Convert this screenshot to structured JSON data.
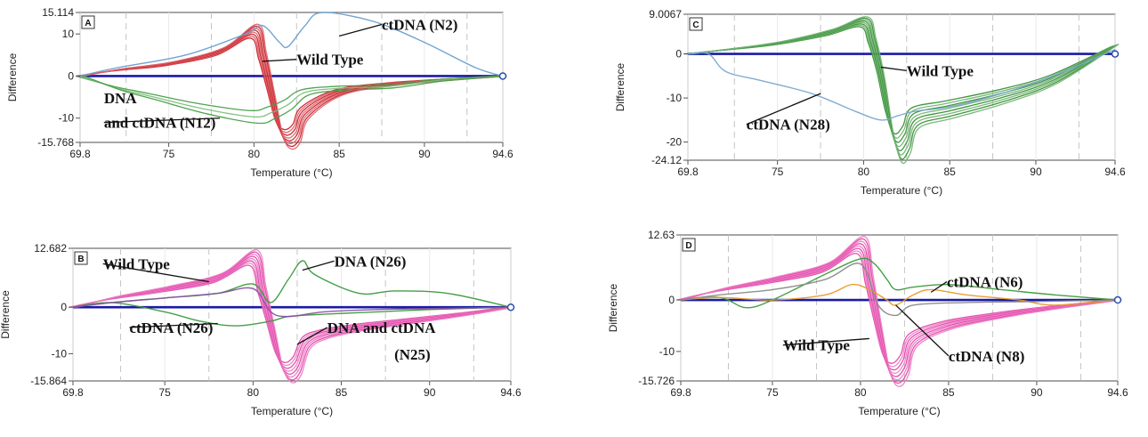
{
  "chart_data": [
    {
      "id": "A",
      "type": "line",
      "panel_label": "A",
      "xlabel": "Temperature (°C)",
      "ylabel": "Difference",
      "xlim": [
        69.8,
        94.6
      ],
      "ylim": [
        -15.768,
        15.114
      ],
      "x_ticks": [
        "69.8",
        "75",
        "80",
        "85",
        "90",
        "94.6"
      ],
      "x_tick_values": [
        69.8,
        75,
        80,
        85,
        90,
        94.6
      ],
      "y_ticks": [
        "15.114",
        "10",
        "0",
        "-10",
        "-15.768"
      ],
      "y_tick_values": [
        15.114,
        10,
        0,
        -10,
        -15.768
      ],
      "gridlines_x": [
        72.5,
        77.5,
        82.5,
        87.5,
        92.5
      ],
      "baseline_color": "#1a1aa6",
      "series": [
        {
          "color": "#c8141e",
          "lines": 8,
          "x": [
            69.8,
            72,
            75,
            78,
            80,
            80.5,
            81,
            81.5,
            82,
            82.5,
            83,
            85,
            88,
            91,
            94.6
          ],
          "y": [
            0,
            1.5,
            3,
            6,
            11,
            5,
            -4,
            -13,
            -15.5,
            -14,
            -9,
            -4,
            -2,
            -1,
            0
          ]
        },
        {
          "color": "#3c9a3c",
          "lines": 3,
          "x": [
            69.8,
            72,
            74,
            77,
            80,
            81,
            82,
            83,
            85,
            88,
            91,
            94.6
          ],
          "y": [
            0,
            -3,
            -5,
            -8,
            -10,
            -9,
            -7,
            -4,
            -3,
            -2.5,
            -1,
            0
          ]
        },
        {
          "color": "#6a9fcf",
          "lines": 1,
          "x": [
            69.8,
            72,
            76,
            79.5,
            80.5,
            81.5,
            82,
            83,
            84,
            87,
            90,
            93,
            94.6
          ],
          "y": [
            0,
            2,
            5,
            10,
            12,
            8,
            7,
            12,
            15.1,
            13,
            8,
            2,
            0
          ]
        }
      ],
      "annotations": [
        {
          "text": "ctDNA (N2)",
          "x": 87.5,
          "y": 11,
          "ax": 85,
          "ay": 9.5
        },
        {
          "text": "Wild Type",
          "x": 82.5,
          "y": 2.7,
          "ax": 80.5,
          "ay": 3.5
        },
        {
          "text": "DNA",
          "x": 71.2,
          "y": -6.5
        },
        {
          "text": "and ctDNA (N12)",
          "x": 71.2,
          "y": -12.3,
          "ax": 78,
          "ay": -10
        }
      ]
    },
    {
      "id": "C",
      "type": "line",
      "panel_label": "C",
      "xlabel": "Temperature (°C)",
      "ylabel": "Difference",
      "xlim": [
        69.8,
        94.6
      ],
      "ylim": [
        -24.12,
        9.0067
      ],
      "x_ticks": [
        "69.8",
        "75",
        "80",
        "85",
        "90",
        "94.6"
      ],
      "x_tick_values": [
        69.8,
        75,
        80,
        85,
        90,
        94.6
      ],
      "y_ticks": [
        "9.0067",
        "0",
        "-10",
        "-20",
        "-24.12"
      ],
      "y_tick_values": [
        9.0067,
        0,
        -10,
        -20,
        -24.12
      ],
      "gridlines_x": [
        72.5,
        77.5,
        82.5,
        87.5,
        92.5
      ],
      "baseline_color": "#1a1aa6",
      "series": [
        {
          "color": "#2a8a2a",
          "lines": 8,
          "x": [
            69.8,
            72,
            75,
            78,
            80,
            80.5,
            81,
            81.5,
            82,
            82.5,
            83,
            85,
            88,
            91,
            94.6
          ],
          "y": [
            0,
            1,
            2.5,
            5,
            7.5,
            3,
            -5,
            -16,
            -22,
            -20,
            -15,
            -13,
            -10,
            -6,
            2
          ]
        },
        {
          "color": "#7aa7d0",
          "lines": 1,
          "x": [
            69.8,
            71,
            72,
            74,
            77,
            79.5,
            81,
            82,
            83,
            85,
            88,
            91,
            94.6
          ],
          "y": [
            0,
            0,
            -4,
            -6,
            -9,
            -13,
            -15,
            -14,
            -13,
            -12,
            -9,
            -5,
            1
          ]
        }
      ],
      "annotations": [
        {
          "text": "Wild Type",
          "x": 82.5,
          "y": -5,
          "ax": 81,
          "ay": -3
        },
        {
          "text": "ctDNA (N28)",
          "x": 73.2,
          "y": -17.2,
          "ax": 77.5,
          "ay": -9
        }
      ]
    },
    {
      "id": "B",
      "type": "line",
      "panel_label": "B",
      "xlabel": "Temperature (°C)",
      "ylabel": "Difference",
      "xlim": [
        69.8,
        94.6
      ],
      "ylim": [
        -15.864,
        12.682
      ],
      "x_ticks": [
        "69.8",
        "75",
        "80",
        "85",
        "90",
        "94.6"
      ],
      "x_tick_values": [
        69.8,
        75,
        80,
        85,
        90,
        94.6
      ],
      "y_ticks": [
        "12.682",
        "0",
        "-10",
        "-15.864"
      ],
      "y_tick_values": [
        12.682,
        0,
        -10,
        -15.864
      ],
      "gridlines_x": [
        72.5,
        77.5,
        82.5,
        87.5,
        92.5
      ],
      "baseline_color": "#1a1aa6",
      "series": [
        {
          "color": "#e23ca5",
          "lines": 8,
          "x": [
            69.8,
            72,
            75,
            78,
            80,
            80.5,
            81,
            81.5,
            82,
            82.5,
            83,
            84,
            86,
            89,
            92,
            94.6
          ],
          "y": [
            0,
            2,
            4,
            6.5,
            11,
            4,
            -4,
            -12,
            -14.5,
            -13,
            -8,
            -6,
            -4.5,
            -3,
            -1.5,
            0
          ]
        },
        {
          "color": "#3c9a3c",
          "lines": 1,
          "x": [
            69.8,
            72,
            75,
            78,
            80,
            81,
            82,
            82.8,
            83.5,
            86,
            88,
            91,
            94.6
          ],
          "y": [
            0,
            1,
            2,
            3,
            5,
            1,
            6,
            10,
            7,
            3,
            3.5,
            3,
            0
          ]
        },
        {
          "color": "#3c9a3c",
          "lines": 1,
          "x": [
            69.8,
            72,
            75,
            77,
            79,
            81,
            82,
            84,
            87,
            90,
            94.6
          ],
          "y": [
            0,
            1,
            -1,
            -3,
            -4,
            -3,
            -2,
            -1.5,
            -1,
            -0.5,
            0
          ]
        },
        {
          "color": "#8a50a6",
          "lines": 1,
          "x": [
            69.8,
            72,
            75,
            78,
            80,
            81,
            82,
            84,
            87,
            90,
            94.6
          ],
          "y": [
            0,
            1,
            2,
            3,
            4,
            -1,
            -2,
            -1,
            -0.5,
            -0.3,
            0
          ]
        }
      ],
      "annotations": [
        {
          "text": "Wild Type",
          "x": 71.5,
          "y": 8.2,
          "ax": 77.5,
          "ay": 5.5
        },
        {
          "text": "DNA (N26)",
          "x": 84.6,
          "y": 8.8,
          "ax": 82.8,
          "ay": 8
        },
        {
          "text": "ctDNA (N26)",
          "x": 73,
          "y": -5.5,
          "ax": 78,
          "ay": -3.5
        },
        {
          "text": "DNA and ctDNA",
          "x": 84.2,
          "y": -5.5,
          "ax": 82.5,
          "ay": -8
        },
        {
          "text": "(N25)",
          "x": 88,
          "y": -11.3
        }
      ]
    },
    {
      "id": "D",
      "type": "line",
      "panel_label": "D",
      "xlabel": "Temperature (°C)",
      "ylabel": "Difference",
      "xlim": [
        69.8,
        94.6
      ],
      "ylim": [
        -15.726,
        12.63
      ],
      "x_ticks": [
        "69.8",
        "75",
        "80",
        "85",
        "90",
        "94.6"
      ],
      "x_tick_values": [
        69.8,
        75,
        80,
        85,
        90,
        94.6
      ],
      "y_ticks": [
        "12.63",
        "0",
        "-10",
        "-15.726"
      ],
      "y_tick_values": [
        12.63,
        0,
        -10,
        -15.726
      ],
      "gridlines_x": [
        72.5,
        77.5,
        82.5,
        87.5,
        92.5
      ],
      "baseline_color": "#1a1aa6",
      "series": [
        {
          "color": "#e23ca5",
          "lines": 8,
          "x": [
            69.8,
            72,
            75,
            78,
            80,
            80.5,
            81,
            81.5,
            82,
            82.5,
            83,
            85,
            88,
            91,
            94.6
          ],
          "y": [
            0,
            2,
            4,
            6.5,
            11,
            4,
            -5,
            -13,
            -15,
            -13,
            -8,
            -5,
            -3,
            -1.5,
            0
          ]
        },
        {
          "color": "#3c9a3c",
          "lines": 1,
          "x": [
            69.8,
            72,
            73.5,
            75,
            78,
            80,
            80.8,
            81.5,
            82,
            83,
            85,
            88,
            91,
            94.6
          ],
          "y": [
            0,
            0.5,
            -1.5,
            0,
            5,
            8,
            7,
            4,
            2,
            2.5,
            3,
            2,
            1,
            0
          ]
        },
        {
          "color": "#e89a2a",
          "lines": 1,
          "x": [
            69.8,
            72,
            75,
            78,
            79.5,
            80.5,
            81.5,
            82,
            83,
            84,
            86,
            89,
            91,
            94.6
          ],
          "y": [
            0,
            0.5,
            0,
            1,
            3,
            2,
            0,
            -1,
            1,
            2,
            1,
            0,
            -1,
            0
          ]
        },
        {
          "color": "#8a8a8a",
          "lines": 1,
          "x": [
            69.8,
            72,
            75,
            78,
            80,
            81,
            82,
            83,
            86,
            90,
            94.6
          ],
          "y": [
            0,
            1,
            2,
            4,
            7,
            -1,
            -3,
            -1,
            -0.5,
            -0.3,
            0
          ]
        }
      ],
      "annotations": [
        {
          "text": "ctDNA (N6)",
          "x": 84.9,
          "y": 2.5,
          "ax": 84,
          "ay": 1.5
        },
        {
          "text": "Wild Type",
          "x": 75.6,
          "y": -9.8,
          "ax": 80.5,
          "ay": -7.5
        },
        {
          "text": "ctDNA (N8)",
          "x": 85,
          "y": -11.9,
          "ax": 82,
          "ay": -1
        }
      ]
    }
  ]
}
